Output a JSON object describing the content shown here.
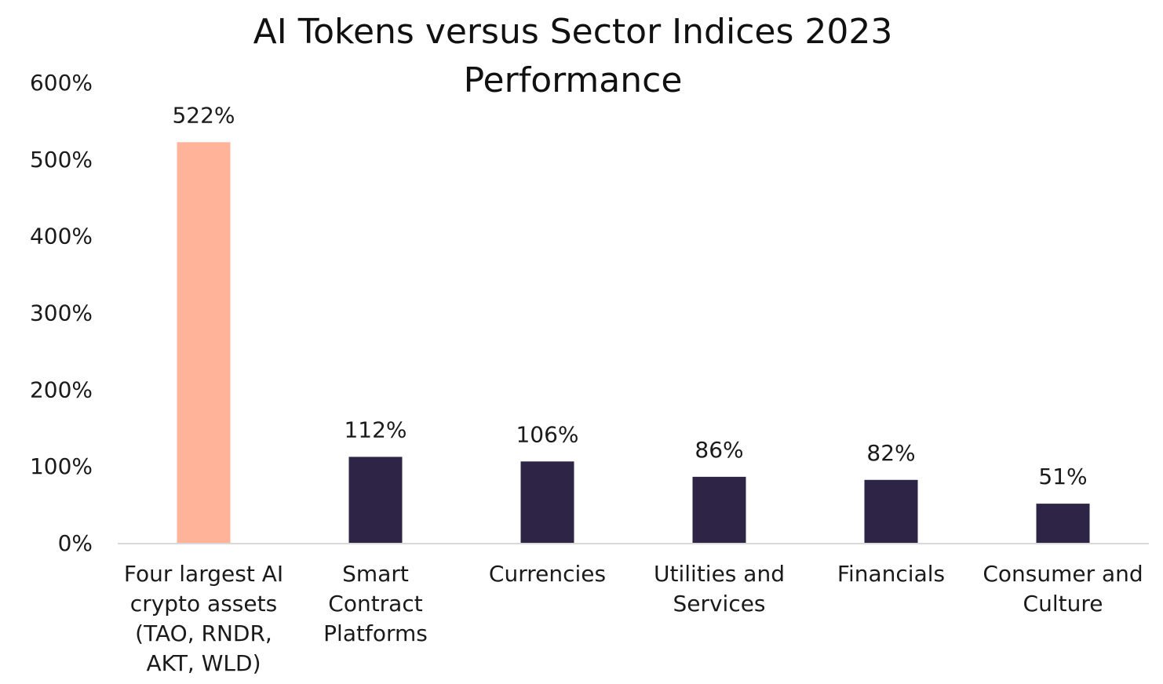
{
  "chart_data": {
    "type": "bar",
    "title": "AI Tokens versus Sector Indices 2023 Performance",
    "title_lines": [
      "AI Tokens versus Sector Indices 2023",
      "Performance"
    ],
    "categories": [
      "Four largest AI crypto assets (TAO, RNDR, AKT, WLD)",
      "Smart Contract Platforms",
      "Currencies",
      "Utilities and Services",
      "Financials",
      "Consumer and Culture"
    ],
    "category_lines": [
      [
        "Four largest AI",
        "crypto assets",
        "(TAO, RNDR,",
        "AKT, WLD)"
      ],
      [
        "Smart",
        "Contract",
        "Platforms"
      ],
      [
        "Currencies"
      ],
      [
        "Utilities and",
        "Services"
      ],
      [
        "Financials"
      ],
      [
        "Consumer and",
        "Culture"
      ]
    ],
    "values": [
      522,
      112,
      106,
      86,
      82,
      51
    ],
    "data_labels": [
      "522%",
      "112%",
      "106%",
      "86%",
      "82%",
      "51%"
    ],
    "unit": "%",
    "ylim": [
      0,
      600
    ],
    "yticks": [
      0,
      100,
      200,
      300,
      400,
      500,
      600
    ],
    "ytick_labels": [
      "0%",
      "100%",
      "200%",
      "300%",
      "400%",
      "500%",
      "600%"
    ],
    "grid": false,
    "legend": "none",
    "colors": {
      "highlight": "#FFB49A",
      "default": "#2E2546",
      "axis": "#D9D9D9",
      "text": "#1A1A1A"
    },
    "highlight_index": 0
  }
}
